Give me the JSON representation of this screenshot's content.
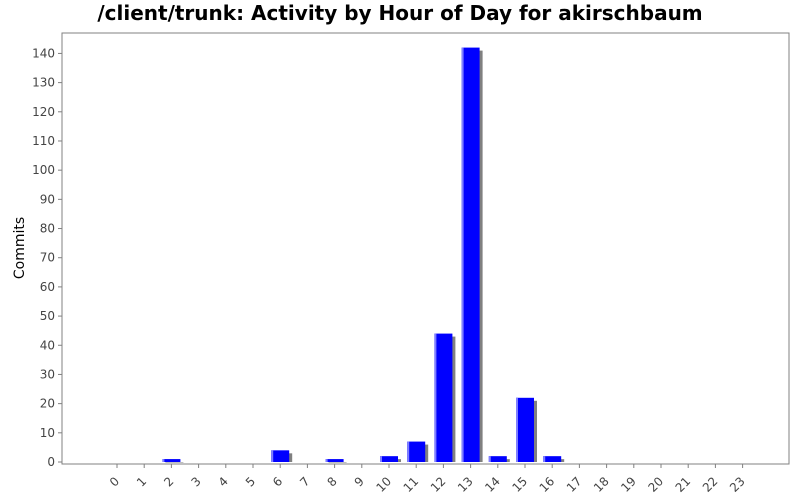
{
  "chart_data": {
    "type": "bar",
    "title": "/client/trunk: Activity by Hour of Day for akirschbaum",
    "xlabel": "",
    "ylabel": "Commits",
    "categories": [
      "0",
      "1",
      "2",
      "3",
      "4",
      "5",
      "6",
      "7",
      "8",
      "9",
      "10",
      "11",
      "12",
      "13",
      "14",
      "15",
      "16",
      "17",
      "18",
      "19",
      "20",
      "21",
      "22",
      "23"
    ],
    "values": [
      0,
      0,
      1,
      0,
      0,
      0,
      4,
      0,
      1,
      0,
      2,
      7,
      44,
      142,
      2,
      22,
      2,
      0,
      0,
      0,
      0,
      0,
      0,
      0
    ],
    "ylim": [
      0,
      147
    ],
    "yticks": [
      0,
      10,
      20,
      30,
      40,
      50,
      60,
      70,
      80,
      90,
      100,
      110,
      120,
      130,
      140
    ],
    "grid": false,
    "legend": "none",
    "colors": {
      "bar": "#0000ff",
      "bar_highlight": "#8080ff",
      "bar_shadow": "#808080",
      "axis": "#808080",
      "frame": "#808080"
    }
  }
}
